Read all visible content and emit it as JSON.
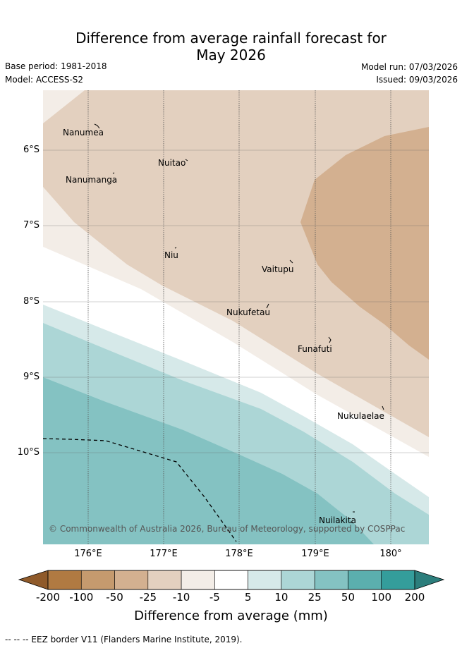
{
  "title": {
    "line1": "Difference from average rainfall forecast for",
    "line2": "May 2026"
  },
  "meta": {
    "base_period": "Base period: 1981-2018",
    "model": "Model: ACCESS-S2",
    "model_run": "Model run: 07/03/2026",
    "issued": "Issued: 09/03/2026"
  },
  "map": {
    "latitude_labels": [
      "6°S",
      "7°S",
      "8°S",
      "9°S",
      "10°S"
    ],
    "longitude_labels": [
      "176°E",
      "177°E",
      "178°E",
      "179°E",
      "180°"
    ],
    "places": [
      {
        "name": "Nanumea"
      },
      {
        "name": "Nuitao"
      },
      {
        "name": "Nanumanga"
      },
      {
        "name": "Niu"
      },
      {
        "name": "Vaitupu"
      },
      {
        "name": "Nukufetau"
      },
      {
        "name": "Funafuti"
      },
      {
        "name": "Nukulaelae"
      },
      {
        "name": "Nuilakita"
      }
    ],
    "copyright": "© Commonwealth of Australia 2026, Bureau of Meteorology, supported by COSPPac"
  },
  "colorbar": {
    "ticks": [
      "-200",
      "-100",
      "-50",
      "-25",
      "-10",
      "-5",
      "5",
      "10",
      "25",
      "50",
      "100",
      "200"
    ],
    "colors": [
      "#8f5a2a",
      "#b07a42",
      "#c59a6e",
      "#d3b090",
      "#e3d0bf",
      "#f3ede7",
      "#ffffff",
      "#d6e9e9",
      "#acd6d6",
      "#84c2c2",
      "#5bafae",
      "#349d9b",
      "#2c7e7c"
    ],
    "label": "Difference from average (mm)"
  },
  "footer": "-- -- -- EEZ border V11 (Flanders Marine Institute, 2019)."
}
